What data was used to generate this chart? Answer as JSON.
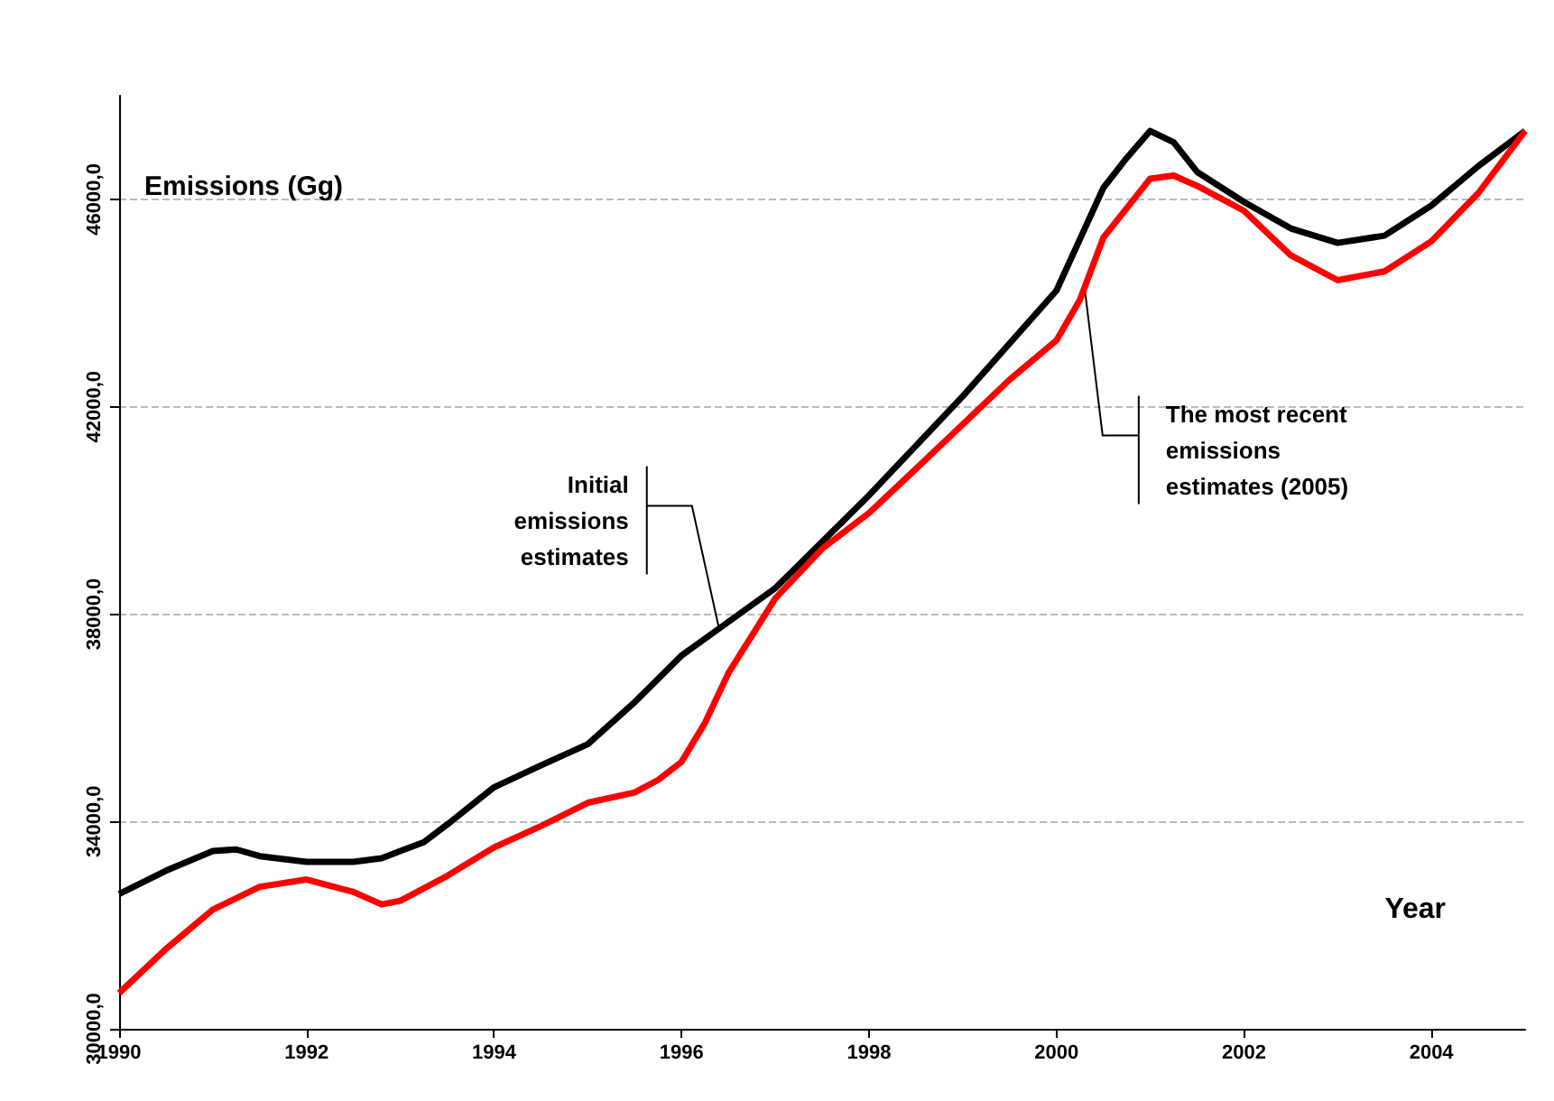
{
  "chart_data": {
    "type": "line",
    "xlabel": "Year",
    "ylabel": "Emissions (Gg)",
    "xlim": [
      1990,
      2005
    ],
    "xticks": [
      1990,
      1992,
      1994,
      1996,
      1998,
      2000,
      2002,
      2004
    ],
    "ylim": [
      30000,
      48000
    ],
    "yticks": [
      {
        "value": 30000,
        "label": "30000,0"
      },
      {
        "value": 34000,
        "label": "34000,0"
      },
      {
        "value": 38000,
        "label": "38000,0"
      },
      {
        "value": 42000,
        "label": "42000,0"
      },
      {
        "value": 46000,
        "label": "46000,0"
      }
    ],
    "grid": "y",
    "marker": "none",
    "series": [
      {
        "color": "#000000",
        "x": [
          1990,
          1990.5,
          1991,
          1991.25,
          1991.5,
          1992,
          1992.5,
          1992.8,
          1993,
          1993.25,
          1993.5,
          1994,
          1994.5,
          1995,
          1995.5,
          1996,
          1997,
          1998,
          1999,
          2000,
          2000.5,
          2000.75,
          2001,
          2001.25,
          2001.5,
          2002,
          2002.5,
          2003,
          2003.5,
          2004,
          2004.5,
          2005
        ],
        "values": [
          32600,
          33050,
          33430,
          33460,
          33330,
          33220,
          33220,
          33290,
          33430,
          33600,
          33940,
          34660,
          35080,
          35490,
          36300,
          37200,
          38500,
          40290,
          42200,
          44240,
          46220,
          46800,
          47320,
          47100,
          46530,
          45950,
          45440,
          45160,
          45300,
          45880,
          46640,
          47320
        ]
      },
      {
        "color": "#ff0000",
        "x": [
          1990,
          1990.5,
          1991,
          1991.5,
          1992,
          1992.5,
          1992.8,
          1993,
          1993.5,
          1994,
          1994.5,
          1995,
          1995.5,
          1995.75,
          1996,
          1996.25,
          1996.5,
          1997,
          1997.5,
          1998,
          1998.5,
          1999,
          1999.5,
          2000,
          2000.25,
          2000.5,
          2001,
          2001.25,
          2001.5,
          2002,
          2002.5,
          2003,
          2003.5,
          2004,
          2004.5,
          2005
        ],
        "values": [
          30690,
          31540,
          32300,
          32740,
          32880,
          32640,
          32400,
          32470,
          32950,
          33500,
          33910,
          34360,
          34560,
          34800,
          35150,
          35900,
          36860,
          38300,
          39260,
          39950,
          40800,
          41660,
          42520,
          43280,
          44060,
          45260,
          46400,
          46460,
          46260,
          45780,
          44920,
          44440,
          44610,
          45190,
          46120,
          47320
        ]
      }
    ],
    "annotations": [
      {
        "text": "Initial emissions estimates",
        "x": 1996.4,
        "y": 37720
      },
      {
        "text": "The most recent emissions estimates (2005)",
        "x": 2000.3,
        "y": 44300
      }
    ]
  }
}
